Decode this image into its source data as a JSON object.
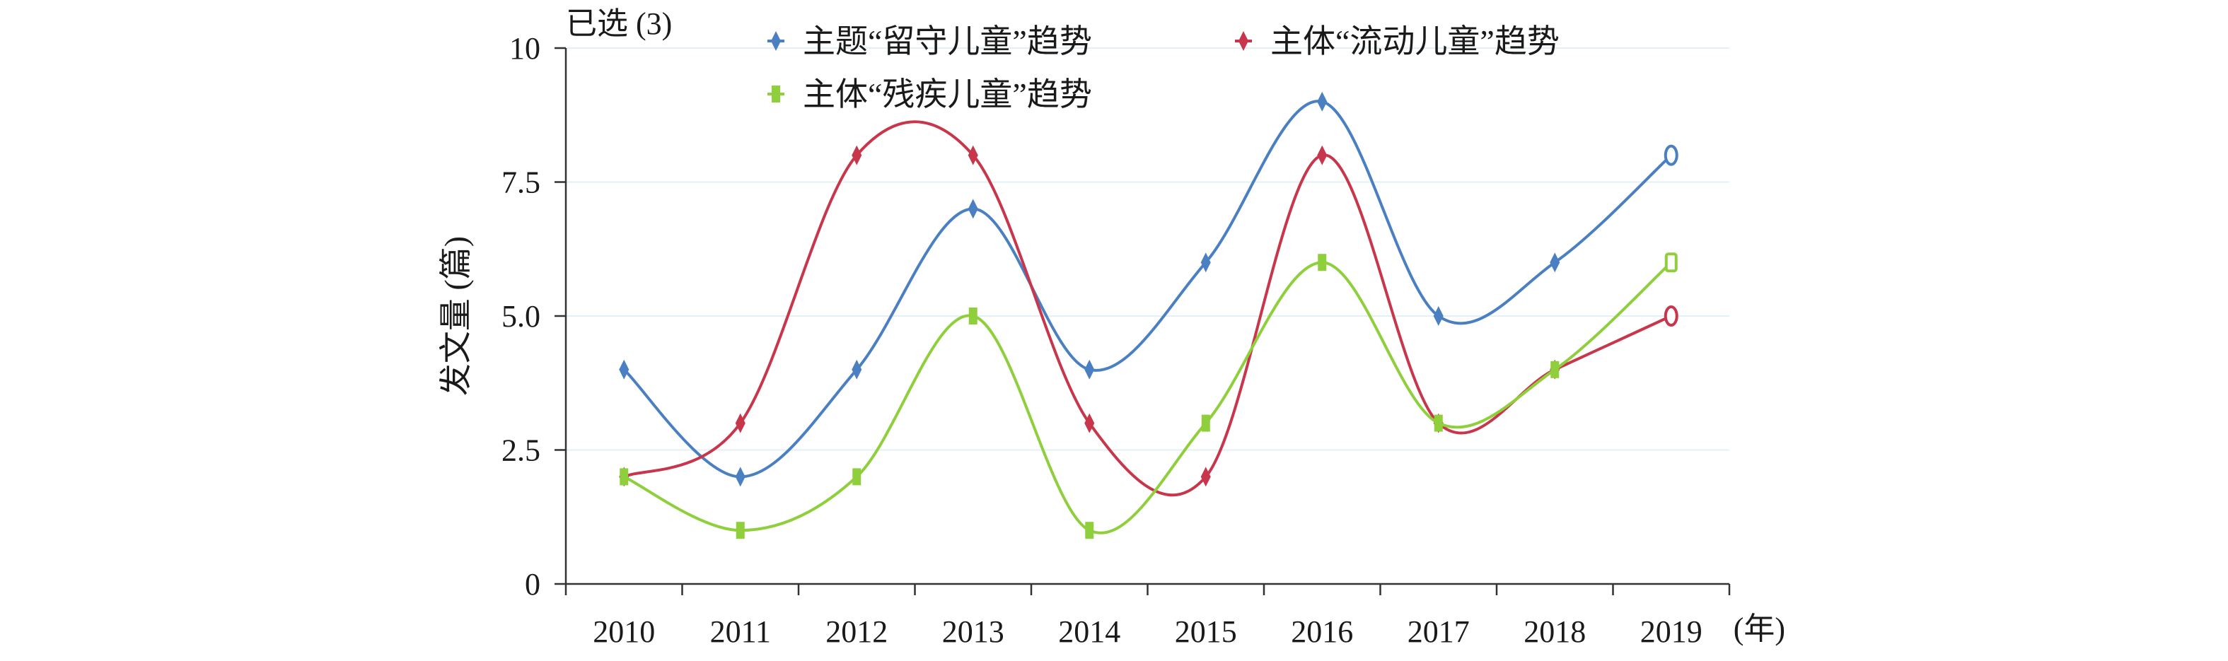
{
  "chart_data": {
    "type": "line",
    "selected_label": "已选 (3)",
    "x": [
      "2010",
      "2011",
      "2012",
      "2013",
      "2014",
      "2015",
      "2016",
      "2017",
      "2018",
      "2019"
    ],
    "x_unit_label": "(年)",
    "ylabel": "发文量 (篇)",
    "ylim": [
      0,
      10
    ],
    "yticks": [
      0,
      2.5,
      5,
      7.5,
      10
    ],
    "ytick_labels": [
      "0",
      "2.5",
      "5.0",
      "7.5",
      "10"
    ],
    "grid": "horizontal",
    "legend_position": "top",
    "series": [
      {
        "name": "主题“留守儿童”趋势",
        "color": "#4a7fc1",
        "marker": "diamond",
        "values": [
          4,
          2,
          4,
          7,
          4,
          6,
          9,
          5,
          6,
          8
        ]
      },
      {
        "name": "主体“流动儿童”趋势",
        "color": "#c8364b",
        "marker": "diamond",
        "values": [
          2,
          3,
          8,
          8,
          3,
          2,
          8,
          3,
          4,
          5
        ]
      },
      {
        "name": "主体“残疾儿童”趋势",
        "color": "#8fcf3c",
        "marker": "square",
        "values": [
          2,
          1,
          2,
          5,
          1,
          3,
          6,
          3,
          4,
          6
        ]
      }
    ]
  }
}
